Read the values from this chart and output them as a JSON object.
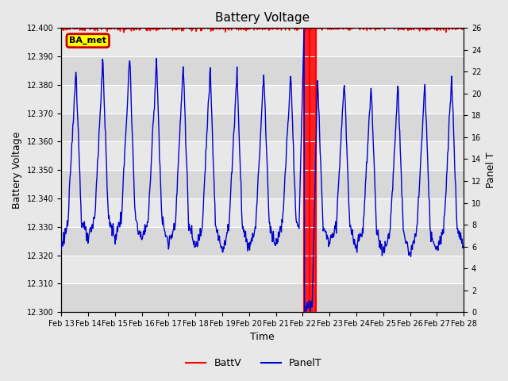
{
  "title": "Battery Voltage",
  "xlabel": "Time",
  "ylabel_left": "Battery Voltage",
  "ylabel_right": "Panel T",
  "ylim_left": [
    12.3,
    12.4
  ],
  "ylim_right": [
    0,
    26
  ],
  "xtick_labels": [
    "Feb 13",
    "Feb 14",
    "Feb 15",
    "Feb 16",
    "Feb 17",
    "Feb 18",
    "Feb 19",
    "Feb 20",
    "Feb 21",
    "Feb 22",
    "Feb 23",
    "Feb 24",
    "Feb 25",
    "Feb 26",
    "Feb 27",
    "Feb 28"
  ],
  "ytick_left": [
    12.3,
    12.31,
    12.32,
    12.33,
    12.34,
    12.35,
    12.36,
    12.37,
    12.38,
    12.39,
    12.4
  ],
  "ytick_right": [
    0,
    2,
    4,
    6,
    8,
    10,
    12,
    14,
    16,
    18,
    20,
    22,
    24,
    26
  ],
  "batt_color": "#ff0000",
  "panel_color": "#0000cc",
  "background_color": "#e8e8e8",
  "plot_bg_color": "#e8e8e8",
  "stripe_color": "#d8d8d8",
  "annotation_text": "BA_met",
  "annotation_bg": "#ffff00",
  "annotation_border": "#cc0000",
  "vline_color": "#ff0000",
  "vline_x1": 9.05,
  "vline_x2": 9.25,
  "vline_x3": 9.5,
  "legend_batt_label": "BattV",
  "legend_panel_label": "PanelT",
  "n_days": 15,
  "n_points": 800
}
